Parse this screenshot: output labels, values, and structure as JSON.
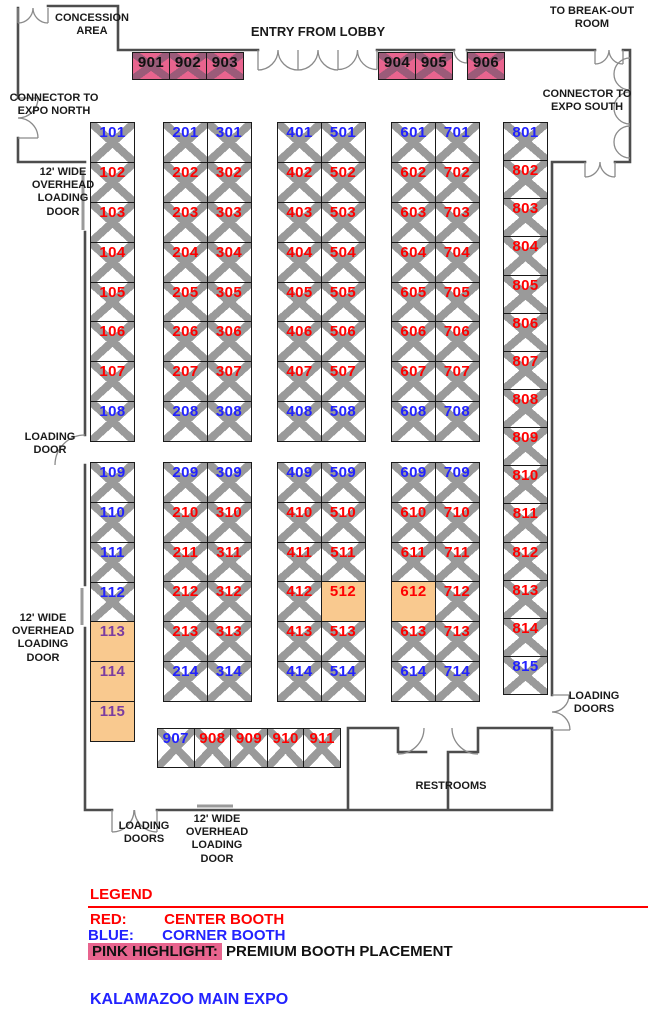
{
  "title": "KALAMAZOO MAIN EXPO",
  "labels": {
    "concession_area": "CONCESSION\nAREA",
    "entry_from_lobby": "ENTRY FROM LOBBY",
    "to_breakout_room": "TO BREAK-OUT\nROOM",
    "connector_north": "CONNECTOR TO\nEXPO NORTH",
    "connector_south": "CONNECTOR TO\nEXPO SOUTH",
    "overhead_door_nw": "12' WIDE\nOVERHEAD\nLOADING\nDOOR",
    "loading_door_w": "LOADING\nDOOR",
    "overhead_door_sw": "12' WIDE\nOVERHEAD\nLOADING\nDOOR",
    "loading_doors_e": "LOADING\nDOORS",
    "restrooms": "RESTROOMS",
    "loading_doors_s": "LOADING\nDOORS",
    "overhead_door_s": "12' WIDE\nOVERHEAD\nLOADING\nDOOR"
  },
  "legend": {
    "heading": "LEGEND",
    "red_key": "RED:",
    "red_value": "CENTER BOOTH",
    "blue_key": "BLUE:",
    "blue_value": "CORNER BOOTH",
    "pink_key": "PINK HIGHLIGHT:",
    "pink_value": "PREMIUM BOOTH PLACEMENT"
  },
  "colors": {
    "center_booth_number": "#ff0000",
    "corner_booth_number": "#2222ff",
    "premium_highlight": "#e8648e",
    "hold_highlight": "#f9c98f",
    "hold_number": "#7b3da0",
    "booth_x": "#9a9a9a"
  },
  "columns": {
    "c100_upper": [
      {
        "n": "101",
        "c": "blue"
      },
      {
        "n": "102",
        "c": "red"
      },
      {
        "n": "103",
        "c": "red"
      },
      {
        "n": "104",
        "c": "red"
      },
      {
        "n": "105",
        "c": "red"
      },
      {
        "n": "106",
        "c": "red"
      },
      {
        "n": "107",
        "c": "red"
      },
      {
        "n": "108",
        "c": "blue"
      }
    ],
    "c200_upper": [
      {
        "n": "201",
        "c": "blue"
      },
      {
        "n": "202",
        "c": "red"
      },
      {
        "n": "203",
        "c": "red"
      },
      {
        "n": "204",
        "c": "red"
      },
      {
        "n": "205",
        "c": "red"
      },
      {
        "n": "206",
        "c": "red"
      },
      {
        "n": "207",
        "c": "red"
      },
      {
        "n": "208",
        "c": "blue"
      }
    ],
    "c300_upper": [
      {
        "n": "301",
        "c": "blue"
      },
      {
        "n": "302",
        "c": "red"
      },
      {
        "n": "303",
        "c": "red"
      },
      {
        "n": "304",
        "c": "red"
      },
      {
        "n": "305",
        "c": "red"
      },
      {
        "n": "306",
        "c": "red"
      },
      {
        "n": "307",
        "c": "red"
      },
      {
        "n": "308",
        "c": "blue"
      }
    ],
    "c400_upper": [
      {
        "n": "401",
        "c": "blue"
      },
      {
        "n": "402",
        "c": "red"
      },
      {
        "n": "403",
        "c": "red"
      },
      {
        "n": "404",
        "c": "red"
      },
      {
        "n": "405",
        "c": "red"
      },
      {
        "n": "406",
        "c": "red"
      },
      {
        "n": "407",
        "c": "red"
      },
      {
        "n": "408",
        "c": "blue"
      }
    ],
    "c500_upper": [
      {
        "n": "501",
        "c": "blue"
      },
      {
        "n": "502",
        "c": "red"
      },
      {
        "n": "503",
        "c": "red"
      },
      {
        "n": "504",
        "c": "red"
      },
      {
        "n": "505",
        "c": "red"
      },
      {
        "n": "506",
        "c": "red"
      },
      {
        "n": "507",
        "c": "red"
      },
      {
        "n": "508",
        "c": "blue"
      }
    ],
    "c600_upper": [
      {
        "n": "601",
        "c": "blue"
      },
      {
        "n": "602",
        "c": "red"
      },
      {
        "n": "603",
        "c": "red"
      },
      {
        "n": "604",
        "c": "red"
      },
      {
        "n": "605",
        "c": "red"
      },
      {
        "n": "606",
        "c": "red"
      },
      {
        "n": "607",
        "c": "red"
      },
      {
        "n": "608",
        "c": "blue"
      }
    ],
    "c700_upper": [
      {
        "n": "701",
        "c": "blue"
      },
      {
        "n": "702",
        "c": "red"
      },
      {
        "n": "703",
        "c": "red"
      },
      {
        "n": "704",
        "c": "red"
      },
      {
        "n": "705",
        "c": "red"
      },
      {
        "n": "706",
        "c": "red"
      },
      {
        "n": "707",
        "c": "red"
      },
      {
        "n": "708",
        "c": "blue"
      }
    ],
    "c800": [
      {
        "n": "801",
        "c": "blue"
      },
      {
        "n": "802",
        "c": "red"
      },
      {
        "n": "803",
        "c": "red"
      },
      {
        "n": "804",
        "c": "red"
      },
      {
        "n": "805",
        "c": "red"
      },
      {
        "n": "806",
        "c": "red"
      },
      {
        "n": "807",
        "c": "red"
      },
      {
        "n": "808",
        "c": "red"
      },
      {
        "n": "809",
        "c": "red"
      },
      {
        "n": "810",
        "c": "red"
      },
      {
        "n": "811",
        "c": "red"
      },
      {
        "n": "812",
        "c": "red"
      },
      {
        "n": "813",
        "c": "red"
      },
      {
        "n": "814",
        "c": "red"
      },
      {
        "n": "815",
        "c": "blue"
      }
    ],
    "c100_lower": [
      {
        "n": "109",
        "c": "blue"
      },
      {
        "n": "110",
        "c": "blue"
      },
      {
        "n": "111",
        "c": "blue"
      },
      {
        "n": "112",
        "c": "blue"
      },
      {
        "n": "113",
        "c": "purple",
        "bg": "orange",
        "x": false
      },
      {
        "n": "114",
        "c": "purple",
        "bg": "orange",
        "x": false
      },
      {
        "n": "115",
        "c": "purple",
        "bg": "orange",
        "x": false
      }
    ],
    "c200_lower": [
      {
        "n": "209",
        "c": "blue"
      },
      {
        "n": "210",
        "c": "red"
      },
      {
        "n": "211",
        "c": "red"
      },
      {
        "n": "212",
        "c": "red"
      },
      {
        "n": "213",
        "c": "red"
      },
      {
        "n": "214",
        "c": "blue"
      }
    ],
    "c300_lower": [
      {
        "n": "309",
        "c": "blue"
      },
      {
        "n": "310",
        "c": "red"
      },
      {
        "n": "311",
        "c": "red"
      },
      {
        "n": "312",
        "c": "red"
      },
      {
        "n": "313",
        "c": "red"
      },
      {
        "n": "314",
        "c": "blue"
      }
    ],
    "c400_lower": [
      {
        "n": "409",
        "c": "blue"
      },
      {
        "n": "410",
        "c": "red"
      },
      {
        "n": "411",
        "c": "red"
      },
      {
        "n": "412",
        "c": "red"
      },
      {
        "n": "413",
        "c": "red"
      },
      {
        "n": "414",
        "c": "blue"
      }
    ],
    "c500_lower": [
      {
        "n": "509",
        "c": "blue"
      },
      {
        "n": "510",
        "c": "red"
      },
      {
        "n": "511",
        "c": "red"
      },
      {
        "n": "512",
        "c": "red",
        "bg": "orange",
        "x": false
      },
      {
        "n": "513",
        "c": "red"
      },
      {
        "n": "514",
        "c": "blue"
      }
    ],
    "c600_lower": [
      {
        "n": "609",
        "c": "blue"
      },
      {
        "n": "610",
        "c": "red"
      },
      {
        "n": "611",
        "c": "red"
      },
      {
        "n": "612",
        "c": "red",
        "bg": "orange",
        "x": false
      },
      {
        "n": "613",
        "c": "red"
      },
      {
        "n": "614",
        "c": "blue"
      }
    ],
    "c700_lower": [
      {
        "n": "709",
        "c": "blue"
      },
      {
        "n": "710",
        "c": "red"
      },
      {
        "n": "711",
        "c": "red"
      },
      {
        "n": "712",
        "c": "red"
      },
      {
        "n": "713",
        "c": "red"
      },
      {
        "n": "714",
        "c": "blue"
      }
    ],
    "premium_left": [
      {
        "n": "901",
        "c": "black",
        "bg": "pink"
      },
      {
        "n": "902",
        "c": "black",
        "bg": "pink"
      },
      {
        "n": "903",
        "c": "black",
        "bg": "pink"
      }
    ],
    "premium_mid": [
      {
        "n": "904",
        "c": "black",
        "bg": "pink"
      },
      {
        "n": "905",
        "c": "black",
        "bg": "pink"
      }
    ],
    "premium_right": [
      {
        "n": "906",
        "c": "black",
        "bg": "pink"
      }
    ],
    "row_900s": [
      {
        "n": "907",
        "c": "blue"
      },
      {
        "n": "908",
        "c": "red"
      },
      {
        "n": "909",
        "c": "red"
      },
      {
        "n": "910",
        "c": "red"
      },
      {
        "n": "911",
        "c": "red"
      }
    ]
  }
}
